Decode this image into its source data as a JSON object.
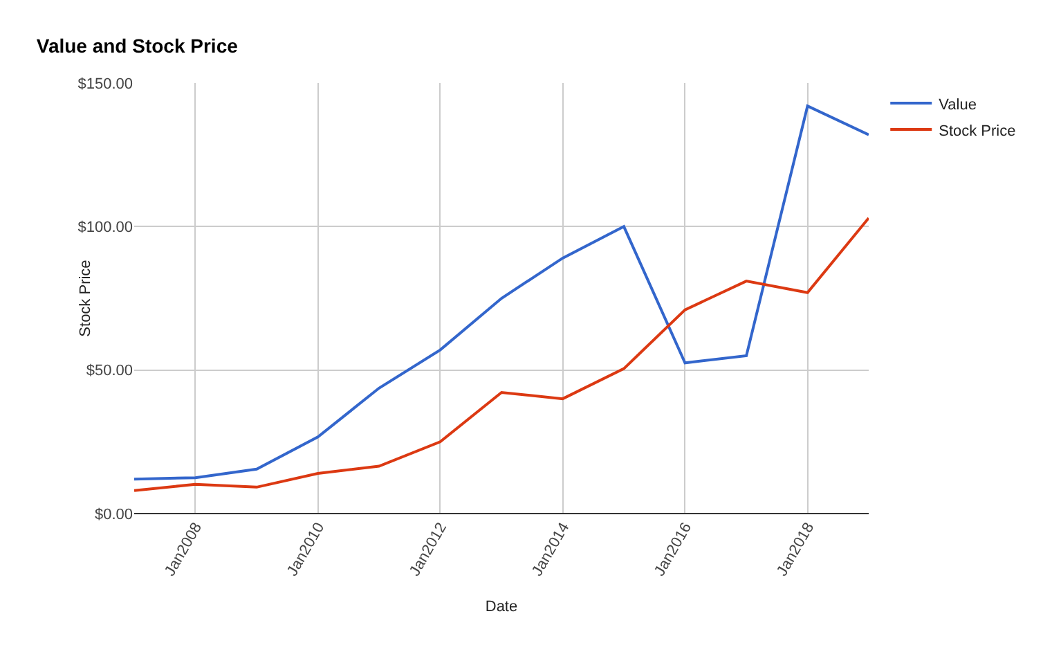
{
  "chart_data": {
    "type": "line",
    "title": "Value and Stock Price",
    "xlabel": "Date",
    "ylabel": "Stock Price",
    "x": [
      "2007-01",
      "2008-01",
      "2009-01",
      "2010-01",
      "2011-01",
      "2012-01",
      "2013-01",
      "2014-01",
      "2015-01",
      "2016-01",
      "2017-01",
      "2018-01",
      "2019-01"
    ],
    "series": [
      {
        "name": "Value",
        "color": "#3366cc",
        "values": [
          12,
          12.5,
          15.5,
          26.7,
          43.7,
          57,
          75,
          89,
          100,
          52.5,
          55,
          142,
          132
        ]
      },
      {
        "name": "Stock Price",
        "color": "#dc3912",
        "values": [
          8,
          10.2,
          9.2,
          14,
          16.5,
          25,
          42.2,
          40,
          50.5,
          71,
          81,
          77,
          103
        ]
      }
    ],
    "xlim": [
      "2007-01",
      "2019-01"
    ],
    "xticks": [
      {
        "value": "2008-01",
        "label": "Jan2008"
      },
      {
        "value": "2010-01",
        "label": "Jan2010"
      },
      {
        "value": "2012-01",
        "label": "Jan2012"
      },
      {
        "value": "2014-01",
        "label": "Jan2014"
      },
      {
        "value": "2016-01",
        "label": "Jan2016"
      },
      {
        "value": "2018-01",
        "label": "Jan2018"
      }
    ],
    "ylim": [
      0,
      150
    ],
    "yticks": [
      {
        "value": 0,
        "label": "$0.00"
      },
      {
        "value": 50,
        "label": "$50.00"
      },
      {
        "value": 100,
        "label": "$100.00"
      },
      {
        "value": 150,
        "label": "$150.00"
      }
    ],
    "grid": true,
    "legend": "top right",
    "marker": "none",
    "line_style": "solid"
  }
}
